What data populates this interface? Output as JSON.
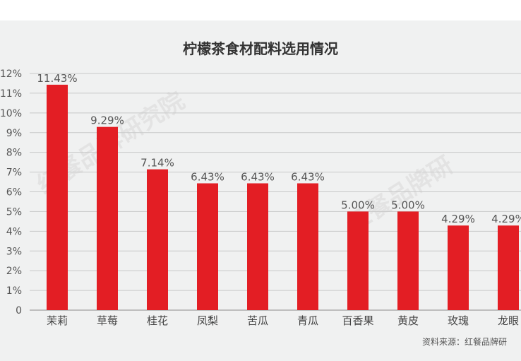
{
  "chart_data": {
    "type": "bar",
    "title": "柠檬茶食材配料选用情况",
    "categories": [
      "茉莉",
      "草莓",
      "桂花",
      "凤梨",
      "苦瓜",
      "青瓜",
      "百香果",
      "黄皮",
      "玫瑰",
      "龙眼"
    ],
    "values": [
      11.43,
      9.29,
      7.14,
      6.43,
      6.43,
      6.43,
      5.0,
      5.0,
      4.29,
      4.29
    ],
    "data_labels": [
      "11.43%",
      "9.29%",
      "7.14%",
      "6.43%",
      "6.43%",
      "6.43%",
      "5.00%",
      "5.00%",
      "4.29%",
      "4.29%"
    ],
    "yticks": [
      "0",
      "1%",
      "2%",
      "3%",
      "4%",
      "5%",
      "6%",
      "7%",
      "8%",
      "9%",
      "10%",
      "11%",
      "12%"
    ],
    "ylim": [
      0,
      12
    ],
    "xlabel": "",
    "ylabel": "",
    "grid": true,
    "bar_color": "#e31e24",
    "background_color": "#f0f1f1"
  },
  "source": "资料来源：红餐品牌研",
  "watermarks": [
    "红餐品牌研究院",
    "红餐品牌研"
  ]
}
